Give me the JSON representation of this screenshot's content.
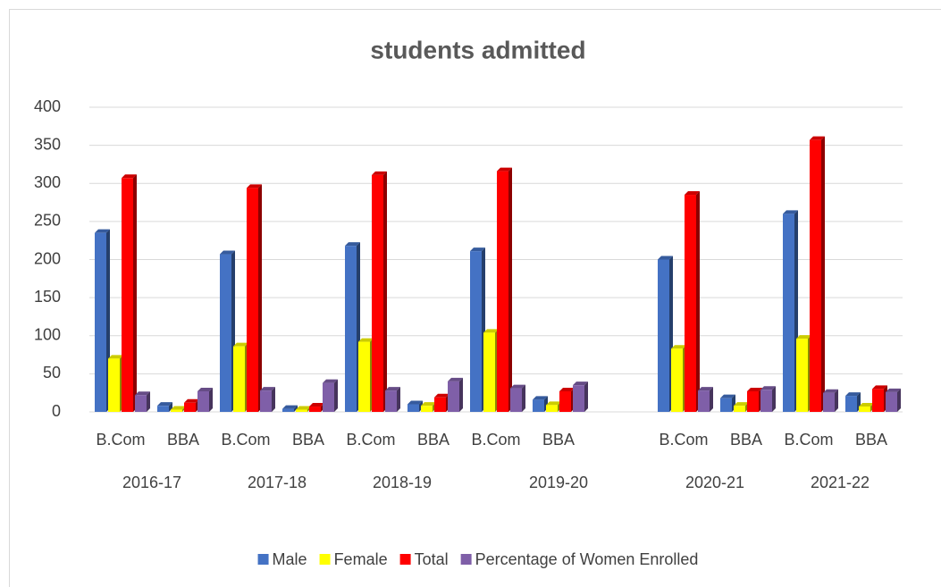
{
  "chart_data": {
    "type": "bar",
    "title": "students admitted",
    "categories": [
      "B.Com",
      "BBA",
      "B.Com",
      "BBA",
      "B.Com",
      "BBA",
      "B.Com",
      "BBA",
      null,
      "B.Com",
      "BBA",
      "B.Com",
      "BBA"
    ],
    "groups": [
      {
        "label": "2016-17",
        "span": 2
      },
      {
        "label": "2017-18",
        "span": 2
      },
      {
        "label": "2018-19",
        "span": 2
      },
      {
        "label": "2019-20",
        "span": 3
      },
      {
        "label": "2020-21",
        "span": 2
      },
      {
        "label": "2021-22",
        "span": 2
      }
    ],
    "series": [
      {
        "name": "Male",
        "color": "#4472c4",
        "values": [
          235,
          8,
          207,
          4,
          218,
          10,
          211,
          16,
          null,
          200,
          18,
          260,
          21
        ]
      },
      {
        "name": "Female",
        "color": "#ffff00",
        "values": [
          70,
          3,
          86,
          3,
          92,
          8,
          104,
          9,
          null,
          83,
          8,
          96,
          7
        ]
      },
      {
        "name": "Total",
        "color": "#ff0000",
        "values": [
          307,
          12,
          294,
          7,
          311,
          19,
          316,
          27,
          null,
          285,
          27,
          357,
          30
        ]
      },
      {
        "name": "Percentage of Women Enrolled",
        "color": "#7f5fa8",
        "values": [
          22,
          27,
          28,
          38,
          28,
          40,
          31,
          35,
          null,
          28,
          29,
          25,
          26
        ]
      }
    ],
    "ylim": [
      0,
      400
    ],
    "yticks": [
      0,
      50,
      100,
      150,
      200,
      250,
      300,
      350,
      400
    ],
    "grid": true,
    "legend": "bottom"
  }
}
